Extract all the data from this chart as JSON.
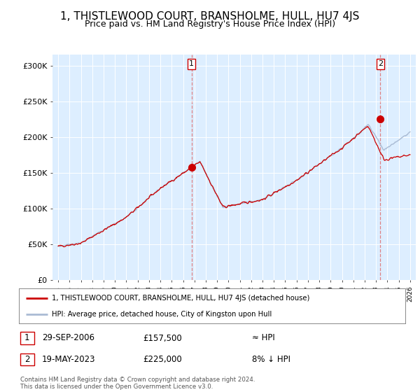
{
  "title": "1, THISTLEWOOD COURT, BRANSHOLME, HULL, HU7 4JS",
  "subtitle": "Price paid vs. HM Land Registry's House Price Index (HPI)",
  "title_fontsize": 11,
  "subtitle_fontsize": 9,
  "bg_color": "#ffffff",
  "plot_bg_color": "#ddeeff",
  "grid_color": "#ffffff",
  "hpi_color": "#aabbd4",
  "price_color": "#cc0000",
  "marker_color": "#cc0000",
  "dashed_color": "#dd6666",
  "sale1_x": 2006.75,
  "sale1_y": 157500,
  "sale1_label": "1",
  "sale2_x": 2023.38,
  "sale2_y": 225000,
  "sale2_label": "2",
  "ylabel_items": [
    "£0",
    "£50K",
    "£100K",
    "£150K",
    "£200K",
    "£250K",
    "£300K"
  ],
  "ylim": [
    0,
    315000
  ],
  "xlim": [
    1994.5,
    2026.5
  ],
  "legend_line1": "1, THISTLEWOOD COURT, BRANSHOLME, HULL, HU7 4JS (detached house)",
  "legend_line2": "HPI: Average price, detached house, City of Kingston upon Hull",
  "table_row1_num": "1",
  "table_row1_date": "29-SEP-2006",
  "table_row1_price": "£157,500",
  "table_row1_hpi": "≈ HPI",
  "table_row2_num": "2",
  "table_row2_date": "19-MAY-2023",
  "table_row2_price": "£225,000",
  "table_row2_hpi": "8% ↓ HPI",
  "footer": "Contains HM Land Registry data © Crown copyright and database right 2024.\nThis data is licensed under the Open Government Licence v3.0."
}
